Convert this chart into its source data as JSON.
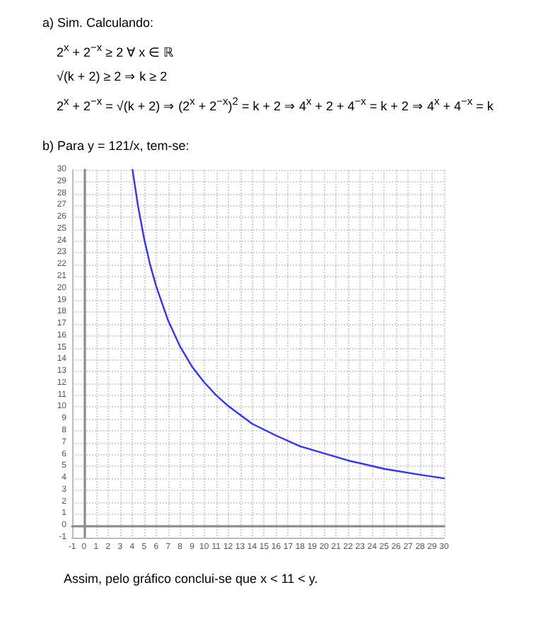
{
  "chart_data": {
    "type": "line",
    "title": "b) Para y = 121/x, tem-se:",
    "annotations": [
      "a) Sim. Calculando:",
      "2$^{x}$ + 2$^{−x}$ ≥ 2 ∀ x ∈ ℝ",
      "√(k + 2) ≥ 2 ⇒ k ≥ 2",
      "2$^{x}$ + 2$^{−x}$ = √(k + 2) ⇒ (2$^{x}$ + 2$^{−x}$)$^{2}$ = k + 2 ⇒ 4$^{x}$ + 2 + 4$^{−x}$ = k + 2 ⇒ 4$^{x}$ + 4$^{−x}$ = k",
      "Assim, pelo gráfico conclui-se que x < 11 < y."
    ],
    "x": [
      4.03,
      4.5,
      5,
      5.5,
      6,
      7,
      8,
      9,
      10,
      11,
      12,
      14,
      16,
      18,
      20,
      22,
      25,
      28,
      30
    ],
    "series": [
      {
        "color": "#3333ff",
        "values": [
          30,
          26.9,
          24.2,
          22,
          20.2,
          17.3,
          15.1,
          13.4,
          12.1,
          11,
          10.1,
          8.6,
          7.6,
          6.7,
          6.1,
          5.5,
          4.8,
          4.3,
          4.0
        ]
      }
    ],
    "xlim": [
      -1,
      30
    ],
    "ylim": [
      -1,
      30
    ],
    "xticks": [
      -1,
      0,
      1,
      2,
      3,
      4,
      5,
      6,
      7,
      8,
      9,
      10,
      11,
      12,
      13,
      14,
      15,
      16,
      17,
      18,
      19,
      20,
      21,
      22,
      23,
      24,
      25,
      26,
      27,
      28,
      29,
      30
    ],
    "yticks": [
      -1,
      0,
      1,
      2,
      3,
      4,
      5,
      6,
      7,
      8,
      9,
      10,
      11,
      12,
      13,
      14,
      15,
      16,
      17,
      18,
      19,
      20,
      21,
      22,
      23,
      24,
      25,
      26,
      27,
      28,
      29,
      30
    ],
    "grid": true,
    "marker": "none",
    "line_style": "solid"
  }
}
